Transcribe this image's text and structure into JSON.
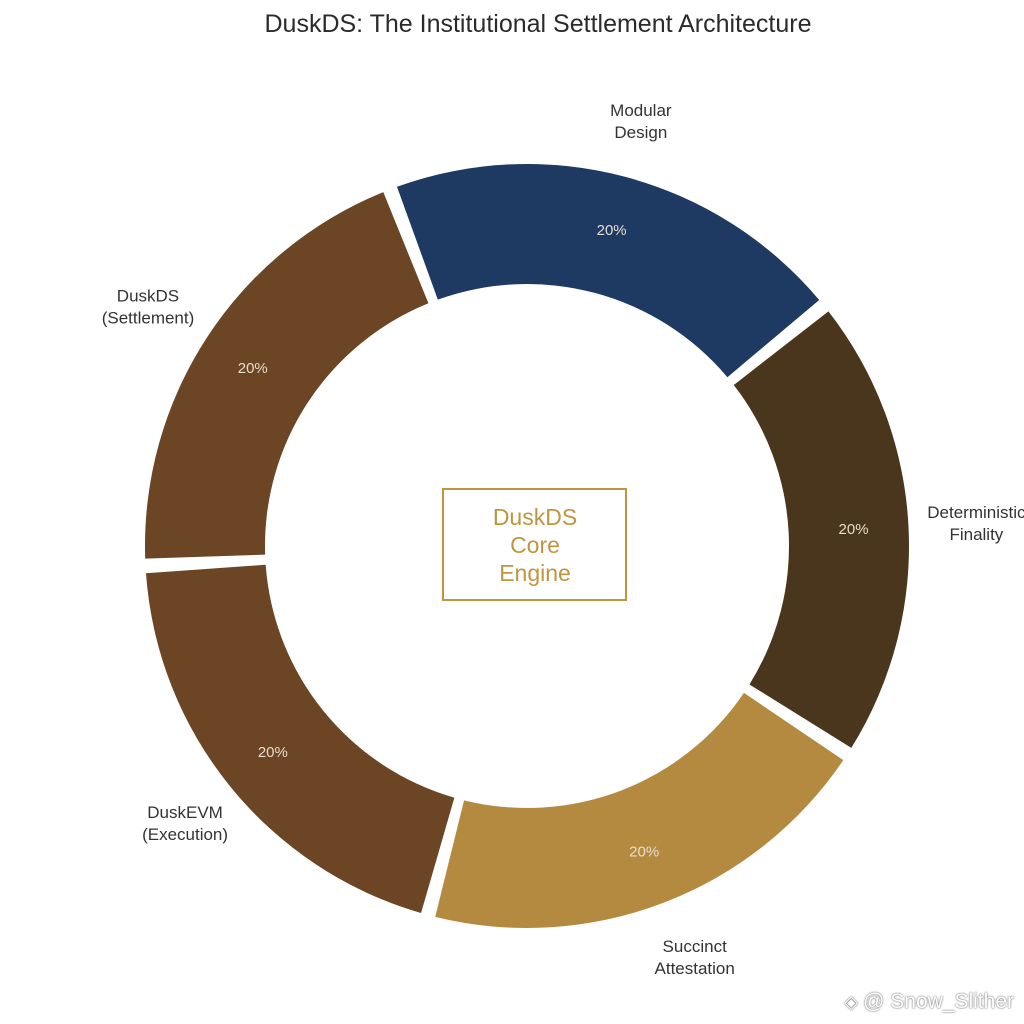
{
  "chart_data": {
    "type": "pie",
    "title": "DuskDS: The Institutional Settlement Architecture",
    "center_label": [
      "DuskDS",
      "Core",
      "Engine"
    ],
    "slices": [
      {
        "label": [
          "Modular",
          "Design"
        ],
        "value": 20,
        "value_label": "20%",
        "color": "#1e3a63"
      },
      {
        "label": [
          "Deterministic",
          "Finality"
        ],
        "value": 20,
        "value_label": "20%",
        "color": "#4a361c"
      },
      {
        "label": [
          "Succinct",
          "Attestation"
        ],
        "value": 20,
        "value_label": "20%",
        "color": "#b48a40"
      },
      {
        "label": [
          "DuskEVM",
          "(Execution)"
        ],
        "value": 20,
        "value_label": "20%",
        "color": "#6b4524"
      },
      {
        "label": [
          "DuskDS",
          "(Settlement)"
        ],
        "value": 20,
        "value_label": "20%",
        "color": "#6b4524"
      }
    ],
    "legend": "none"
  },
  "colors": {
    "center_box_border": "#c1953f",
    "center_text": "#c1953f"
  },
  "watermark": {
    "logo": "binance-logo-icon",
    "text": "@ Snow_Slither"
  }
}
